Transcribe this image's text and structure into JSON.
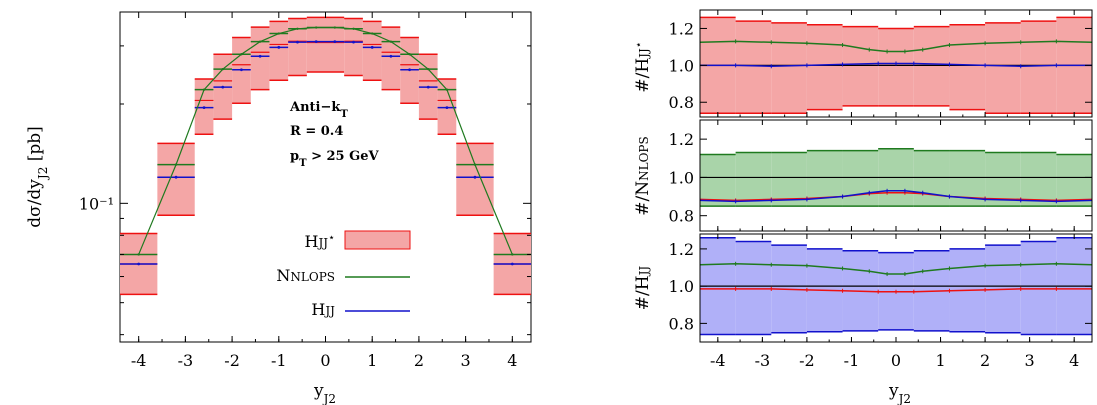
{
  "chart_data": [
    {
      "type": "bar",
      "panel": "main",
      "annotation": [
        "Anti−k_T",
        "R = 0.4",
        "p_T > 25 GeV"
      ],
      "xlabel": "y_J2",
      "ylabel": "dσ/dy_J2 [pb]",
      "ylog": true,
      "xlim": [
        -4.4,
        4.4
      ],
      "ylim": [
        0.038,
        0.38
      ],
      "xticks": [
        "-4",
        "-3",
        "-2",
        "-1",
        "0",
        "1",
        "2",
        "3",
        "4"
      ],
      "yticks": [
        {
          "value": 0.1,
          "label": "10⁻¹"
        }
      ],
      "bin_edges": [
        -4.4,
        -3.6,
        -2.8,
        -2.4,
        -2.0,
        -1.6,
        -1.2,
        -0.8,
        -0.4,
        0.0,
        0.4,
        0.8,
        1.2,
        1.6,
        2.0,
        2.4,
        2.8,
        3.6,
        4.4
      ],
      "legend": [
        {
          "label": "H",
          "label_sc": "JJ*",
          "style": "band",
          "color": "#ee1111"
        },
        {
          "label": "N",
          "label_sc": "NLOPS",
          "style": "line",
          "color": "#1f7a1f"
        },
        {
          "label": "H",
          "label_sc": "JJ",
          "style": "line",
          "color": "#1111cc"
        }
      ],
      "series": [
        {
          "name": "HJJ*",
          "color": "#ee1111",
          "style": "band",
          "central": [
            0.0655,
            0.12,
            0.205,
            0.235,
            0.263,
            0.287,
            0.303,
            0.31,
            0.307,
            0.307,
            0.31,
            0.303,
            0.287,
            0.263,
            0.235,
            0.205,
            0.12,
            0.0655
          ],
          "low": [
            0.053,
            0.092,
            0.162,
            0.18,
            0.201,
            0.221,
            0.236,
            0.244,
            0.25,
            0.25,
            0.244,
            0.236,
            0.221,
            0.201,
            0.18,
            0.162,
            0.092,
            0.053
          ],
          "high": [
            0.081,
            0.152,
            0.238,
            0.283,
            0.318,
            0.342,
            0.356,
            0.363,
            0.366,
            0.366,
            0.363,
            0.356,
            0.342,
            0.318,
            0.283,
            0.238,
            0.152,
            0.081
          ]
        },
        {
          "name": "NNLOPS",
          "color": "#1f7a1f",
          "style": "line",
          "x": [
            -4.0,
            -3.2,
            -2.6,
            -2.2,
            -1.8,
            -1.4,
            -1.0,
            -0.6,
            -0.2,
            0.2,
            0.6,
            1.0,
            1.4,
            1.8,
            2.2,
            2.6,
            3.2,
            4.0
          ],
          "values": [
            0.07,
            0.131,
            0.221,
            0.255,
            0.283,
            0.309,
            0.327,
            0.338,
            0.341,
            0.341,
            0.338,
            0.327,
            0.309,
            0.283,
            0.255,
            0.221,
            0.131,
            0.07
          ]
        },
        {
          "name": "HJJ",
          "color": "#1111cc",
          "style": "line",
          "x": [
            -4.0,
            -3.2,
            -2.6,
            -2.2,
            -1.8,
            -1.4,
            -1.0,
            -0.6,
            -0.2,
            0.2,
            0.6,
            1.0,
            1.4,
            1.8,
            2.2,
            2.6,
            3.2,
            4.0
          ],
          "values": [
            0.0655,
            0.12,
            0.195,
            0.225,
            0.254,
            0.279,
            0.297,
            0.308,
            0.309,
            0.309,
            0.308,
            0.297,
            0.279,
            0.254,
            0.225,
            0.195,
            0.12,
            0.0655
          ]
        }
      ]
    },
    {
      "type": "line",
      "panel": "ratio-1",
      "ylabel": "#/HJJ*",
      "ylim": [
        0.72,
        1.3
      ],
      "yticks": [
        "0.8",
        "1.0",
        "1.2"
      ],
      "bin_edges": [
        -4.4,
        -3.6,
        -2.8,
        -2.0,
        -1.2,
        -0.4,
        0.4,
        1.2,
        2.0,
        2.8,
        3.6,
        4.4
      ],
      "band": {
        "name": "HJJ*",
        "color": "#ee1111",
        "fill": "#f4a6a6",
        "low": [
          0.74,
          0.74,
          0.74,
          0.76,
          0.78,
          0.78,
          0.78,
          0.76,
          0.74,
          0.74,
          0.74
        ],
        "high": [
          1.26,
          1.24,
          1.23,
          1.22,
          1.21,
          1.2,
          1.21,
          1.22,
          1.23,
          1.24,
          1.26
        ]
      },
      "lines": [
        {
          "name": "NNLOPS",
          "color": "#1f7a1f",
          "x": [
            -4.4,
            -3.6,
            -2.8,
            -2.0,
            -1.2,
            -0.6,
            -0.2,
            0.2,
            0.6,
            1.2,
            2.0,
            2.8,
            3.6,
            4.4
          ],
          "values": [
            1.125,
            1.13,
            1.125,
            1.12,
            1.11,
            1.085,
            1.075,
            1.075,
            1.085,
            1.11,
            1.12,
            1.125,
            1.13,
            1.125
          ]
        },
        {
          "name": "HJJ",
          "color": "#1111cc",
          "x": [
            -4.4,
            -3.6,
            -2.8,
            -2.0,
            -1.2,
            -0.4,
            0.0,
            0.4,
            1.2,
            2.0,
            2.8,
            3.6,
            4.4
          ],
          "values": [
            1.0,
            1.0,
            0.995,
            1.0,
            1.005,
            1.01,
            1.01,
            1.01,
            1.005,
            1.0,
            0.995,
            1.0,
            1.0
          ]
        }
      ]
    },
    {
      "type": "line",
      "panel": "ratio-2",
      "ylabel": "#/NNLOPS",
      "ylim": [
        0.72,
        1.3
      ],
      "yticks": [
        "0.8",
        "1.0",
        "1.2"
      ],
      "bin_edges": [
        -4.4,
        -3.6,
        -2.8,
        -2.0,
        -1.2,
        -0.4,
        0.4,
        1.2,
        2.0,
        2.8,
        3.6,
        4.4
      ],
      "band": {
        "name": "NNLOPS",
        "color": "#1f7a1f",
        "fill": "#a9d4a9",
        "low": [
          0.85,
          0.85,
          0.85,
          0.85,
          0.85,
          0.85,
          0.85,
          0.85,
          0.85,
          0.85,
          0.85
        ],
        "high": [
          1.12,
          1.13,
          1.13,
          1.14,
          1.14,
          1.15,
          1.14,
          1.14,
          1.13,
          1.13,
          1.12
        ]
      },
      "lines": [
        {
          "name": "HJJ*",
          "color": "#ee1111",
          "x": [
            -4.4,
            -3.6,
            -2.8,
            -2.0,
            -1.2,
            -0.6,
            -0.2,
            0.2,
            0.6,
            1.2,
            2.0,
            2.8,
            3.6,
            4.4
          ],
          "values": [
            0.885,
            0.88,
            0.885,
            0.89,
            0.9,
            0.915,
            0.92,
            0.92,
            0.915,
            0.9,
            0.89,
            0.885,
            0.88,
            0.885
          ]
        },
        {
          "name": "HJJ",
          "color": "#1111cc",
          "x": [
            -4.4,
            -3.6,
            -2.8,
            -2.0,
            -1.2,
            -0.6,
            -0.2,
            0.2,
            0.6,
            1.2,
            2.0,
            2.8,
            3.6,
            4.4
          ],
          "values": [
            0.88,
            0.875,
            0.88,
            0.885,
            0.9,
            0.92,
            0.93,
            0.93,
            0.92,
            0.9,
            0.885,
            0.88,
            0.875,
            0.88
          ]
        }
      ]
    },
    {
      "type": "line",
      "panel": "ratio-3",
      "ylabel": "#/HJJ",
      "ylim": [
        0.7,
        1.28
      ],
      "yticks": [
        "0.8",
        "1.0",
        "1.2"
      ],
      "xticks": [
        "-4",
        "-3",
        "-2",
        "-1",
        "0",
        "1",
        "2",
        "3",
        "4"
      ],
      "xlabel": "y_J2",
      "bin_edges": [
        -4.4,
        -3.6,
        -2.8,
        -2.0,
        -1.2,
        -0.4,
        0.4,
        1.2,
        2.0,
        2.8,
        3.6,
        4.4
      ],
      "band": {
        "name": "HJJ",
        "color": "#1111cc",
        "fill": "#b0b0f8",
        "low": [
          0.74,
          0.74,
          0.75,
          0.755,
          0.76,
          0.765,
          0.76,
          0.755,
          0.75,
          0.74,
          0.74
        ],
        "high": [
          1.26,
          1.24,
          1.22,
          1.2,
          1.19,
          1.18,
          1.19,
          1.2,
          1.22,
          1.24,
          1.26
        ]
      },
      "lines": [
        {
          "name": "NNLOPS",
          "color": "#1f7a1f",
          "x": [
            -4.4,
            -3.6,
            -2.8,
            -2.0,
            -1.2,
            -0.6,
            -0.2,
            0.2,
            0.6,
            1.2,
            2.0,
            2.8,
            3.6,
            4.4
          ],
          "values": [
            1.115,
            1.12,
            1.115,
            1.11,
            1.095,
            1.08,
            1.065,
            1.065,
            1.08,
            1.095,
            1.11,
            1.115,
            1.12,
            1.115
          ]
        },
        {
          "name": "HJJ*",
          "color": "#ee1111",
          "x": [
            -4.4,
            -3.6,
            -2.8,
            -2.0,
            -1.2,
            -0.4,
            0.0,
            0.4,
            1.2,
            2.0,
            2.8,
            3.6,
            4.4
          ],
          "values": [
            0.985,
            0.985,
            0.985,
            0.98,
            0.975,
            0.97,
            0.97,
            0.97,
            0.975,
            0.98,
            0.985,
            0.985,
            0.985
          ]
        }
      ]
    }
  ]
}
